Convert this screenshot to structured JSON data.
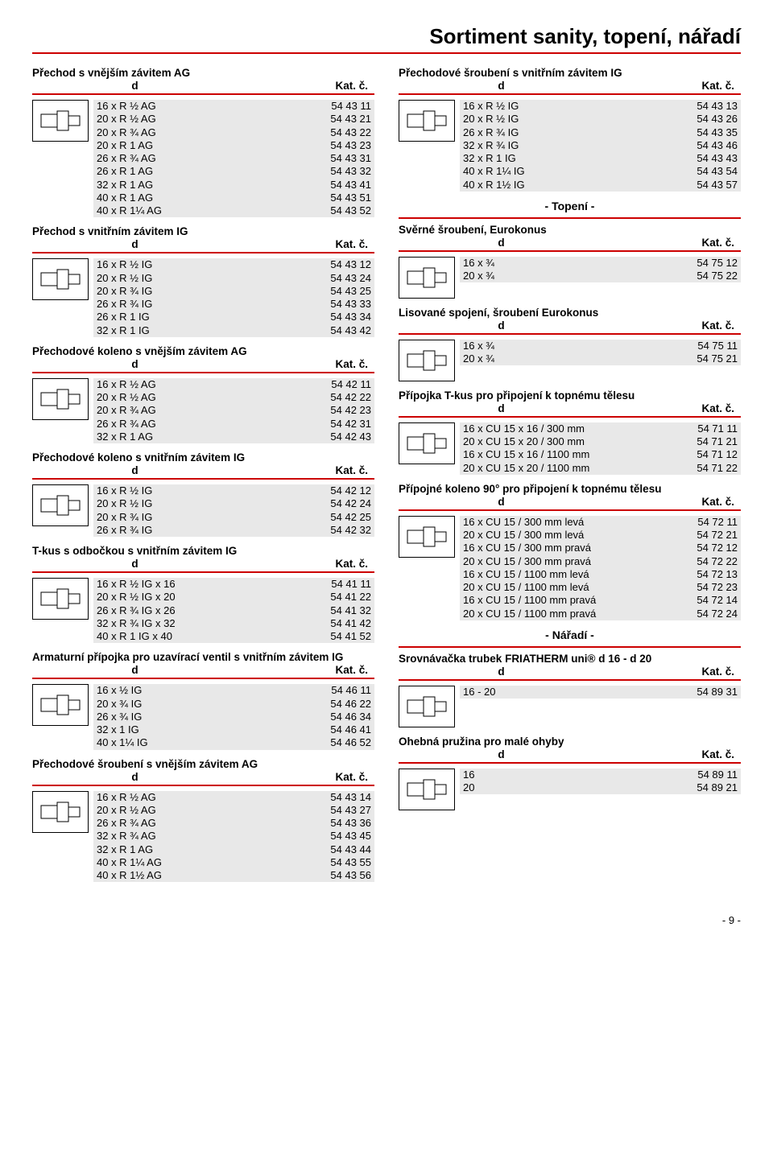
{
  "page_title": "Sortiment sanity, topení, nářadí",
  "col_headers": {
    "d": "d",
    "kat": "Kat. č."
  },
  "headings": {
    "topeni": "- Topení -",
    "naradi": "- Nářadí -"
  },
  "page_number": "- 9 -",
  "left": [
    {
      "title": "Přechod s vnějším závitem AG",
      "icon": "fitting-ag",
      "rows": [
        [
          "16 x R ½  AG",
          "54 43 11"
        ],
        [
          "20 x R ½  AG",
          "54 43 21"
        ],
        [
          "20 x R ¾  AG",
          "54 43 22"
        ],
        [
          "20 x R 1   AG",
          "54 43 23"
        ],
        [
          "26 x R ¾  AG",
          "54 43 31"
        ],
        [
          "26 x R 1   AG",
          "54 43 32"
        ],
        [
          "32 x R 1   AG",
          "54 43 41"
        ],
        [
          "40 x R 1   AG",
          "54 43 51"
        ],
        [
          "40 x R 1¼ AG",
          "54 43 52"
        ]
      ]
    },
    {
      "title": "Přechod s vnitřním závitem IG",
      "icon": "fitting-ig",
      "rows": [
        [
          "16 x R ½ IG",
          "54 43 12"
        ],
        [
          "20 x R ½ IG",
          "54 43 24"
        ],
        [
          "20 x R ¾ IG",
          "54 43 25"
        ],
        [
          "26 x R ¾ IG",
          "54 43 33"
        ],
        [
          "26 x R 1  IG",
          "54 43 34"
        ],
        [
          "32 x R 1  IG",
          "54 43 42"
        ]
      ]
    },
    {
      "title": "Přechodové koleno s vnějším závitem AG",
      "icon": "elbow-ag",
      "rows": [
        [
          "16 x R ½  AG",
          "54 42 11"
        ],
        [
          "20 x R ½  AG",
          "54 42 22"
        ],
        [
          "20 x R ¾  AG",
          "54 42 23"
        ],
        [
          "26 x R ¾  AG",
          "54 42 31"
        ],
        [
          "32 x R 1   AG",
          "54 42 43"
        ]
      ]
    },
    {
      "title": "Přechodové koleno s vnitřním závitem IG",
      "icon": "elbow-ig",
      "rows": [
        [
          "16 x R ½ IG",
          "54 42 12"
        ],
        [
          "20 x R ½ IG",
          "54 42 24"
        ],
        [
          "20 x R ¾ IG",
          "54 42 25"
        ],
        [
          "26 x R ¾ IG",
          "54 42 32"
        ]
      ]
    },
    {
      "title": "T-kus s odbočkou s vnitřním závitem IG",
      "icon": "t-kus",
      "rows": [
        [
          "16 x R ½ IG x 16",
          "54 41 11"
        ],
        [
          "20 x R ½ IG x 20",
          "54 41 22"
        ],
        [
          "26 x R ¾ IG x 26",
          "54 41 32"
        ],
        [
          "32 x R ¾ IG x 32",
          "54 41 42"
        ],
        [
          "40 x R 1  IG x 40",
          "54 41 52"
        ]
      ]
    },
    {
      "title": "Armaturní přípojka pro uzavírací ventil s vnitřním závitem IG",
      "icon": "valve-connector",
      "rows": [
        [
          "16 x ½   IG",
          "54 46 11"
        ],
        [
          "20 x ¾   IG",
          "54 46 22"
        ],
        [
          "26 x ¾   IG",
          "54 46 34"
        ],
        [
          "32 x 1    IG",
          "54 46 41"
        ],
        [
          "40 x 1¼ IG",
          "54 46 52"
        ]
      ]
    },
    {
      "title": "Přechodové šroubení s vnějším závitem AG",
      "icon": "union-ag",
      "rows": [
        [
          "16 x R ½   AG",
          "54 43 14"
        ],
        [
          "20 x R ½   AG",
          "54 43 27"
        ],
        [
          "26 x R ¾   AG",
          "54 43 36"
        ],
        [
          "32 x R ¾   AG",
          "54 43 45"
        ],
        [
          "32 x R 1    AG",
          "54 43 44"
        ],
        [
          "40 x R 1¼ AG",
          "54 43 55"
        ],
        [
          "40 x R 1½ AG",
          "54 43 56"
        ]
      ]
    }
  ],
  "right": [
    {
      "title": "Přechodové šroubení s vnitřním závitem IG",
      "icon": "union-ig",
      "rows": [
        [
          "16 x R ½   IG",
          "54 43 13"
        ],
        [
          "20 x R ½   IG",
          "54 43 26"
        ],
        [
          "26 x R ¾   IG",
          "54 43 35"
        ],
        [
          "32 x R ¾   IG",
          "54 43 46"
        ],
        [
          "32 x R 1    IG",
          "54 43 43"
        ],
        [
          "40 x R 1¼ IG",
          "54 43 54"
        ],
        [
          "40 x R 1½ IG",
          "54 43 57"
        ]
      ]
    }
  ],
  "right_topeni": [
    {
      "title": "Svěrné šroubení, Eurokonus",
      "icon": "eurokonus",
      "rows": [
        [
          "16 x ¾",
          "54 75 12"
        ],
        [
          "20 x ¾",
          "54 75 22"
        ]
      ]
    },
    {
      "title": "Lisované spojení, šroubení Eurokonus",
      "icon": "press-eurokonus",
      "rows": [
        [
          "16 x ¾",
          "54 75 11"
        ],
        [
          "20 x ¾",
          "54 75 21"
        ]
      ]
    },
    {
      "title": "Přípojka T-kus pro připojení k topnému tělesu",
      "icon": "t-radiator",
      "rows": [
        [
          "16 x CU 15 x 16 /   300 mm",
          "54 71 11"
        ],
        [
          "20 x CU 15 x 20 /   300 mm",
          "54 71 21"
        ],
        [
          "16 x CU 15 x 16 / 1100 mm",
          "54 71 12"
        ],
        [
          "20 x CU 15 x 20 / 1100 mm",
          "54 71 22"
        ]
      ]
    },
    {
      "title": "Přípojné koleno 90° pro připojení k topnému tělesu",
      "icon": "elbow-radiator",
      "rows": [
        [
          "16 x CU 15 /   300 mm  levá",
          "54 72 11"
        ],
        [
          "20 x CU 15 /   300 mm  levá",
          "54 72 21"
        ],
        [
          "16 x CU 15 /   300 mm  pravá",
          "54 72 12"
        ],
        [
          "20 x CU 15 /   300 mm  pravá",
          "54 72 22"
        ],
        [
          "16 x CU 15 / 1100 mm  levá",
          "54 72 13"
        ],
        [
          "20 x CU 15 / 1100 mm  levá",
          "54 72 23"
        ],
        [
          "16 x CU 15 / 1100 mm  pravá",
          "54 72 14"
        ],
        [
          "20 x CU 15 / 1100 mm  pravá",
          "54 72 24"
        ]
      ]
    }
  ],
  "right_naradi": [
    {
      "title": "Srovnávačka trubek FRIATHERM uni® d 16 - d 20",
      "icon": "tool-straightener",
      "rows": [
        [
          "16 - 20",
          "54 89 31"
        ]
      ]
    },
    {
      "title": "Ohebná pružina pro malé ohyby",
      "icon": "spring",
      "rows": [
        [
          "16",
          "54 89 11"
        ],
        [
          "20",
          "54 89 21"
        ]
      ]
    }
  ]
}
